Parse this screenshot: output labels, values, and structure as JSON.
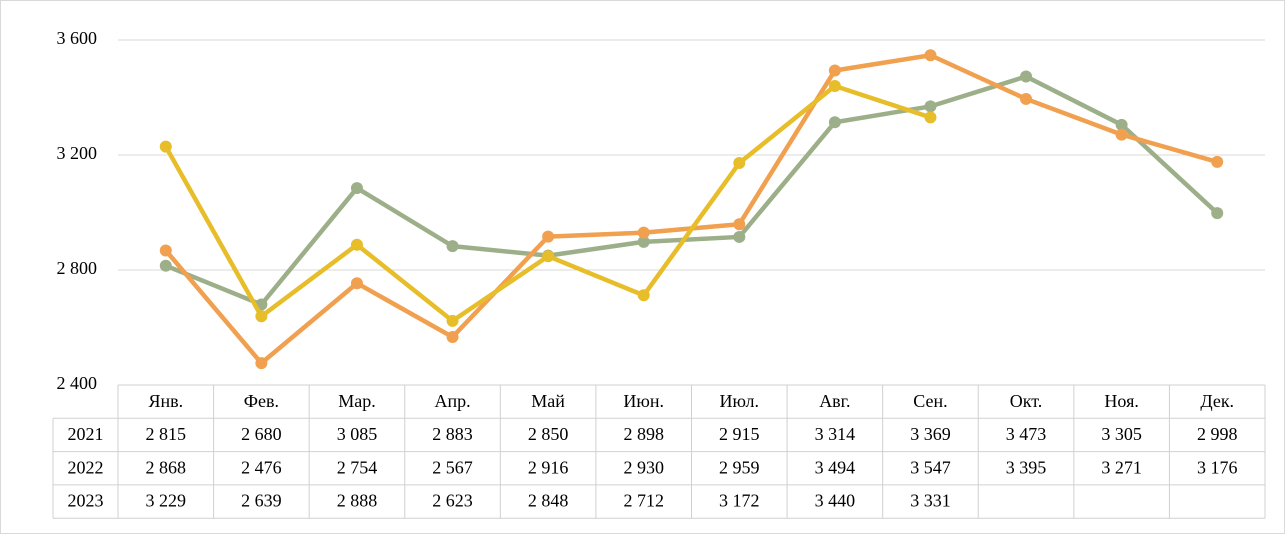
{
  "chart_data": {
    "type": "line",
    "categories": [
      "Янв.",
      "Фев.",
      "Мар.",
      "Апр.",
      "Май",
      "Июн.",
      "Июл.",
      "Авг.",
      "Сен.",
      "Окт.",
      "Ноя.",
      "Дек."
    ],
    "series": [
      {
        "name": "2021",
        "color": "#9daf89",
        "values": [
          2815,
          2680,
          3085,
          2883,
          2850,
          2898,
          2915,
          3314,
          3369,
          3473,
          3305,
          2998
        ],
        "value_labels": [
          "2 815",
          "2 680",
          "3 085",
          "2 883",
          "2 850",
          "2 898",
          "2 915",
          "3 314",
          "3 369",
          "3 473",
          "3 305",
          "2 998"
        ]
      },
      {
        "name": "2022",
        "color": "#f0a04e",
        "values": [
          2868,
          2476,
          2754,
          2567,
          2916,
          2930,
          2959,
          3494,
          3547,
          3395,
          3271,
          3176
        ],
        "value_labels": [
          "2 868",
          "2 476",
          "2 754",
          "2 567",
          "2 916",
          "2 930",
          "2 959",
          "3 494",
          "3 547",
          "3 395",
          "3 271",
          "3 176"
        ]
      },
      {
        "name": "2023",
        "color": "#e8bd2a",
        "values": [
          3229,
          2639,
          2888,
          2623,
          2848,
          2712,
          3172,
          3440,
          3331,
          null,
          null,
          null
        ],
        "value_labels": [
          "3 229",
          "2 639",
          "2 888",
          "2 623",
          "2 848",
          "2 712",
          "3 172",
          "3 440",
          "3 331",
          null,
          null,
          null
        ]
      }
    ],
    "ylim": [
      2400,
      3600
    ],
    "yticks": [
      {
        "value": 2400,
        "label": "2 400"
      },
      {
        "value": 2800,
        "label": "2 800"
      },
      {
        "value": 3200,
        "label": "3 200"
      },
      {
        "value": 3600,
        "label": "3 600"
      }
    ],
    "grid": true
  }
}
